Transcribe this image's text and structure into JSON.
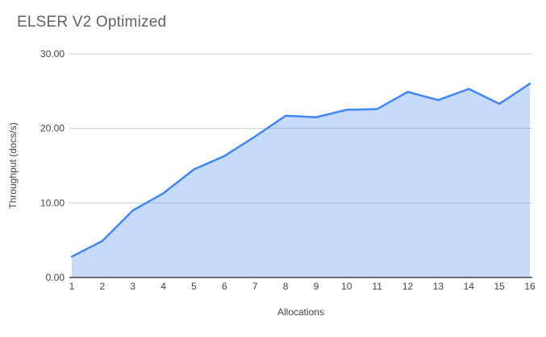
{
  "chart_data": {
    "type": "area",
    "title": "ELSER V2 Optimized",
    "xlabel": "Allocations",
    "ylabel": "Throughput (docs/s)",
    "x": [
      1,
      2,
      3,
      4,
      5,
      6,
      7,
      8,
      9,
      10,
      11,
      12,
      13,
      14,
      15,
      16
    ],
    "series": [
      {
        "name": "Throughput",
        "values": [
          2.8,
          4.9,
          9.0,
          11.3,
          14.5,
          16.3,
          18.9,
          21.7,
          21.5,
          22.5,
          22.6,
          24.9,
          23.8,
          25.3,
          23.3,
          26.0
        ]
      }
    ],
    "xlim": [
      1,
      16
    ],
    "ylim": [
      0,
      30
    ],
    "yticks": [
      0,
      10,
      20,
      30
    ],
    "ytick_labels": [
      "0.00",
      "10.00",
      "20.00",
      "30.00"
    ],
    "xtick_labels": [
      "1",
      "2",
      "3",
      "4",
      "5",
      "6",
      "7",
      "8",
      "9",
      "10",
      "11",
      "12",
      "13",
      "14",
      "15",
      "16"
    ],
    "grid": true,
    "legend": "none",
    "colors": {
      "line": "#4285f4",
      "fill": "#4285f4",
      "fill_opacity": "0.3",
      "gridline": "#cccccc",
      "axis_line": "#212121",
      "tick_text": "#444444",
      "title_text": "#616161"
    }
  }
}
